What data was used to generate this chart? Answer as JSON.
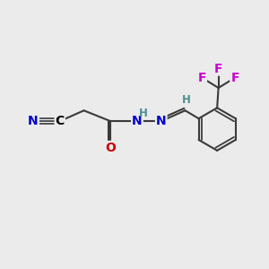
{
  "bg_color": "#ebebeb",
  "bond_color": "#3a3a3a",
  "bond_width": 1.5,
  "atom_colors": {
    "C": "#000000",
    "N": "#0000cc",
    "O": "#cc0000",
    "F": "#cc00cc",
    "H": "#4a9090"
  },
  "font_size_atom": 10,
  "font_size_small": 8.5
}
